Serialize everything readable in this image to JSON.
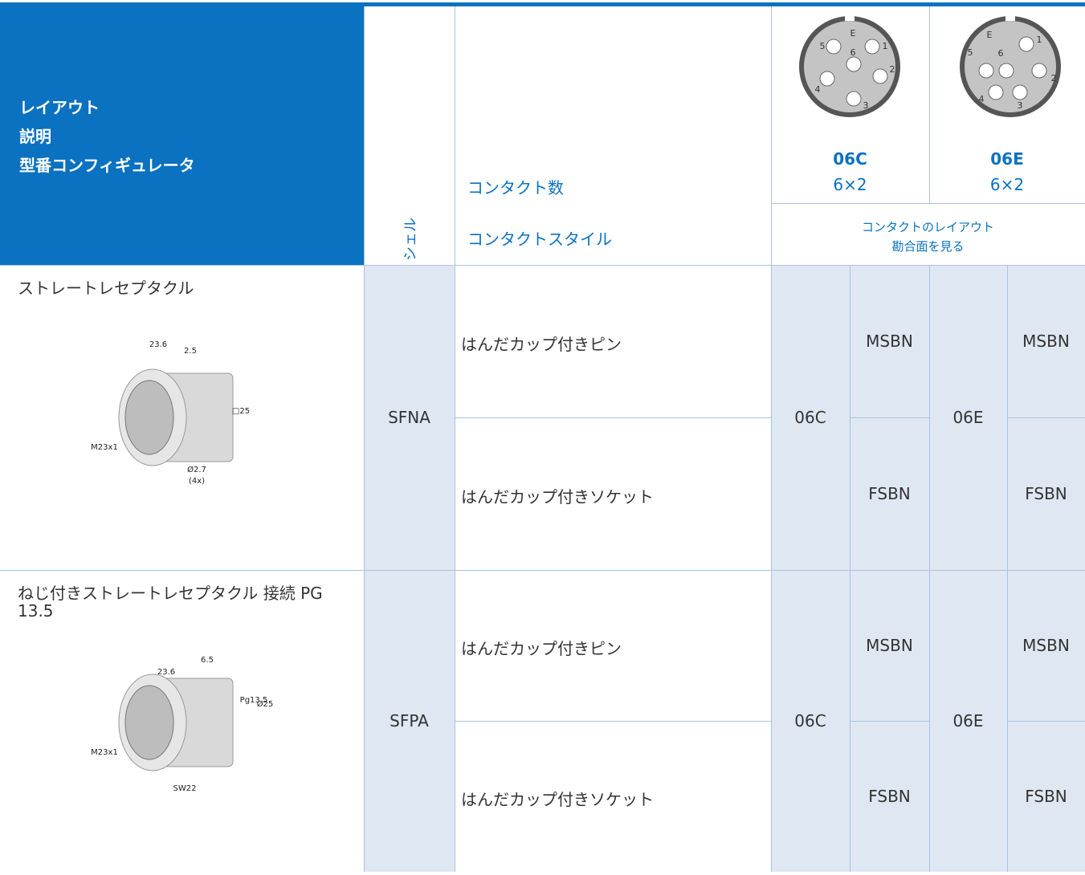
{
  "header": {
    "lines": [
      "レイアウト",
      "説明",
      "型番コンフィギュレータ"
    ],
    "shell": "シェル",
    "contact_count": "コンタクト数",
    "contact_style": "コンタクトスタイル",
    "layouts": [
      {
        "code": "06C",
        "count": "6×2",
        "pins": [
          "E",
          "5",
          "6",
          "1",
          "4",
          "2",
          "3"
        ]
      },
      {
        "code": "06E",
        "count": "6×2",
        "pins": [
          "E",
          "1",
          "5",
          "6",
          "2",
          "4",
          "3"
        ]
      }
    ],
    "layout_note": [
      "コンタクトのレイアウト",
      "勘合面を見る"
    ]
  },
  "rows": [
    {
      "description": "ストレートレセプタクル",
      "dimensions": [
        "23.6",
        "2.5",
        "□25",
        "M23x1",
        "Ø2.7",
        "(4x)"
      ],
      "shell": "SFNA",
      "styles": [
        {
          "name": "はんだカップ付きピン",
          "codes": [
            "MSBN",
            "MSBN"
          ]
        },
        {
          "name": "はんだカップ付きソケット",
          "codes": [
            "FSBN",
            "FSBN"
          ]
        }
      ],
      "layouts": [
        "06C",
        "06E"
      ]
    },
    {
      "description": "ねじ付きストレートレセプタクル 接続 PG 13.5",
      "dimensions": [
        "23.6",
        "6.5",
        "Pg13.5",
        "Ø25",
        "M23x1",
        "SW22"
      ],
      "shell": "SFPA",
      "styles": [
        {
          "name": "はんだカップ付きピン",
          "codes": [
            "MSBN",
            "MSBN"
          ]
        },
        {
          "name": "はんだカップ付きソケット",
          "codes": [
            "FSBN",
            "FSBN"
          ]
        }
      ],
      "layouts": [
        "06C",
        "06E"
      ]
    }
  ]
}
